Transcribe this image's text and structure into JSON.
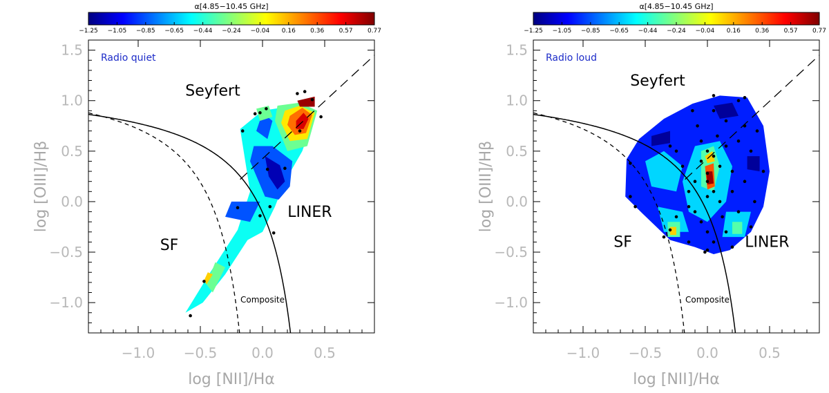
{
  "chart_data": [
    {
      "type": "contour",
      "panel_label": "Radio quiet",
      "xlabel": "log [NII]/Hα",
      "ylabel": "log [OIII]/Hβ",
      "xlim": [
        -1.4,
        0.9
      ],
      "ylim": [
        -1.3,
        1.6
      ],
      "xticks": [
        -1.0,
        -0.5,
        0.0,
        0.5
      ],
      "xtick_labels": [
        "−1.0",
        "−0.5",
        "0.0",
        "0.5"
      ],
      "yticks": [
        -1.0,
        -0.5,
        0.0,
        0.5,
        1.0,
        1.5
      ],
      "ytick_labels": [
        "−1.0",
        "−0.5",
        "0.0",
        "0.5",
        "1.0",
        "1.5"
      ],
      "colorbar": {
        "title": "α[4.85−10.45 GHz]",
        "min": -1.25,
        "max": 0.77,
        "tick_labels": [
          "−1.25",
          "−1.05",
          "−0.85",
          "−0.65",
          "−0.44",
          "−0.24",
          "−0.04",
          "0.16",
          "0.36",
          "0.57",
          "0.77"
        ]
      },
      "regions": [
        {
          "label": "Seyfert",
          "x": -0.4,
          "y": 1.05
        },
        {
          "label": "LINER",
          "x": 0.38,
          "y": -0.15
        },
        {
          "label": "SF",
          "x": -0.75,
          "y": -0.48
        },
        {
          "label": "Composite",
          "x": 0.0,
          "y": -1.0
        }
      ],
      "points": [
        {
          "x": -0.58,
          "y": -1.13
        },
        {
          "x": -0.47,
          "y": -0.79
        },
        {
          "x": -0.2,
          "y": -0.06
        },
        {
          "x": -0.16,
          "y": 0.7
        },
        {
          "x": -0.06,
          "y": 0.87
        },
        {
          "x": -0.02,
          "y": 0.88
        },
        {
          "x": 0.03,
          "y": 0.92
        },
        {
          "x": 0.28,
          "y": 1.07
        },
        {
          "x": 0.34,
          "y": 1.09
        },
        {
          "x": 0.4,
          "y": 1.01
        },
        {
          "x": 0.47,
          "y": 0.84
        },
        {
          "x": 0.3,
          "y": 0.7
        },
        {
          "x": 0.18,
          "y": 0.33
        },
        {
          "x": 0.04,
          "y": 0.32
        },
        {
          "x": 0.06,
          "y": -0.05
        },
        {
          "x": -0.02,
          "y": -0.14
        },
        {
          "x": 0.09,
          "y": -0.31
        }
      ],
      "contour_patches": [
        {
          "value": -0.5,
          "points": [
            [
              -0.62,
              -1.1
            ],
            [
              -0.42,
              -0.7
            ],
            [
              -0.2,
              -0.28
            ],
            [
              -0.1,
              0.1
            ],
            [
              -0.18,
              0.72
            ],
            [
              0.0,
              0.9
            ],
            [
              0.3,
              0.96
            ],
            [
              0.43,
              0.9
            ],
            [
              0.32,
              0.5
            ],
            [
              0.18,
              0.2
            ],
            [
              0.1,
              -0.05
            ],
            [
              0.0,
              -0.3
            ],
            [
              -0.12,
              -0.38
            ],
            [
              -0.3,
              -0.72
            ],
            [
              -0.48,
              -1.0
            ]
          ]
        },
        {
          "value": -0.85,
          "points": [
            [
              -0.3,
              -0.15
            ],
            [
              -0.1,
              -0.2
            ],
            [
              -0.02,
              0.0
            ],
            [
              -0.25,
              0.0
            ]
          ]
        },
        {
          "value": -0.85,
          "points": [
            [
              -0.07,
              0.55
            ],
            [
              0.08,
              0.55
            ],
            [
              0.24,
              0.4
            ],
            [
              0.22,
              0.15
            ],
            [
              0.13,
              0.02
            ],
            [
              0.02,
              0.05
            ],
            [
              -0.1,
              0.4
            ]
          ]
        },
        {
          "value": -1.15,
          "points": [
            [
              0.02,
              0.45
            ],
            [
              0.14,
              0.36
            ],
            [
              0.18,
              0.2
            ],
            [
              0.12,
              0.12
            ],
            [
              0.05,
              0.25
            ]
          ]
        },
        {
          "value": -0.85,
          "points": [
            [
              0.0,
              0.88
            ],
            [
              0.08,
              0.8
            ],
            [
              0.04,
              0.62
            ],
            [
              -0.05,
              0.7
            ]
          ]
        },
        {
          "value": -0.3,
          "points": [
            [
              -0.05,
              0.92
            ],
            [
              0.05,
              0.95
            ],
            [
              0.08,
              0.84
            ],
            [
              -0.02,
              0.8
            ]
          ]
        },
        {
          "value": -0.3,
          "points": [
            [
              -0.4,
              -0.9
            ],
            [
              -0.3,
              -0.65
            ],
            [
              -0.38,
              -0.6
            ],
            [
              -0.45,
              -0.82
            ]
          ]
        },
        {
          "value": -0.3,
          "points": [
            [
              0.12,
              0.95
            ],
            [
              0.3,
              0.98
            ],
            [
              0.44,
              0.9
            ],
            [
              0.36,
              0.55
            ],
            [
              0.2,
              0.5
            ],
            [
              0.1,
              0.8
            ]
          ]
        },
        {
          "value": 0.05,
          "points": [
            [
              0.18,
              0.9
            ],
            [
              0.3,
              0.95
            ],
            [
              0.42,
              0.88
            ],
            [
              0.36,
              0.62
            ],
            [
              0.22,
              0.6
            ],
            [
              0.15,
              0.78
            ]
          ]
        },
        {
          "value": 0.3,
          "points": [
            [
              0.22,
              0.85
            ],
            [
              0.32,
              0.93
            ],
            [
              0.4,
              0.86
            ],
            [
              0.35,
              0.68
            ],
            [
              0.26,
              0.66
            ],
            [
              0.2,
              0.76
            ]
          ]
        },
        {
          "value": 0.6,
          "points": [
            [
              0.27,
              0.8
            ],
            [
              0.33,
              0.88
            ],
            [
              0.37,
              0.82
            ],
            [
              0.33,
              0.72
            ],
            [
              0.27,
              0.72
            ]
          ]
        },
        {
          "value": 0.72,
          "points": [
            [
              0.28,
              1.0
            ],
            [
              0.42,
              1.04
            ],
            [
              0.42,
              0.94
            ],
            [
              0.3,
              0.94
            ]
          ]
        },
        {
          "value": 0.1,
          "points": [
            [
              -0.45,
              -0.82
            ],
            [
              -0.4,
              -0.72
            ],
            [
              -0.44,
              -0.7
            ],
            [
              -0.47,
              -0.78
            ]
          ]
        }
      ]
    },
    {
      "type": "contour",
      "panel_label": "Radio loud",
      "xlabel": "log [NII]/Hα",
      "ylabel": "log [OIII]/Hβ",
      "xlim": [
        -1.4,
        0.9
      ],
      "ylim": [
        -1.3,
        1.6
      ],
      "xticks": [
        -1.0,
        -0.5,
        0.0,
        0.5
      ],
      "xtick_labels": [
        "−1.0",
        "−0.5",
        "0.0",
        "0.5"
      ],
      "yticks": [
        -1.0,
        -0.5,
        0.0,
        0.5,
        1.0,
        1.5
      ],
      "ytick_labels": [
        "−1.0",
        "−0.5",
        "0.0",
        "0.5",
        "1.0",
        "1.5"
      ],
      "colorbar": {
        "title": "α[4.85−10.45 GHz]",
        "min": -1.25,
        "max": 0.77,
        "tick_labels": [
          "−1.25",
          "−1.05",
          "−0.85",
          "−0.65",
          "−0.44",
          "−0.24",
          "−0.04",
          "0.16",
          "0.36",
          "0.57",
          "0.77"
        ]
      },
      "regions": [
        {
          "label": "Seyfert",
          "x": -0.4,
          "y": 1.15
        },
        {
          "label": "LINER",
          "x": 0.48,
          "y": -0.45
        },
        {
          "label": "SF",
          "x": -0.68,
          "y": -0.45
        },
        {
          "label": "Composite",
          "x": 0.0,
          "y": -1.0
        }
      ],
      "points": [
        {
          "x": -0.62,
          "y": 0.38
        },
        {
          "x": -0.62,
          "y": 0.05
        },
        {
          "x": -0.58,
          "y": -0.05
        },
        {
          "x": -0.3,
          "y": -0.28
        },
        {
          "x": -0.3,
          "y": 0.55
        },
        {
          "x": -0.25,
          "y": 0.5
        },
        {
          "x": -0.2,
          "y": 0.35
        },
        {
          "x": -0.15,
          "y": 0.1
        },
        {
          "x": -0.15,
          "y": -0.05
        },
        {
          "x": -0.1,
          "y": 0.2
        },
        {
          "x": -0.1,
          "y": -0.1
        },
        {
          "x": -0.08,
          "y": 0.75
        },
        {
          "x": -0.05,
          "y": 0.6
        },
        {
          "x": -0.05,
          "y": 0.4
        },
        {
          "x": -0.05,
          "y": -0.2
        },
        {
          "x": 0.0,
          "y": 0.5
        },
        {
          "x": 0.0,
          "y": 0.28
        },
        {
          "x": 0.0,
          "y": 0.2
        },
        {
          "x": 0.0,
          "y": 0.05
        },
        {
          "x": 0.0,
          "y": -0.3
        },
        {
          "x": 0.05,
          "y": 0.9
        },
        {
          "x": 0.05,
          "y": 0.45
        },
        {
          "x": 0.05,
          "y": 0.1
        },
        {
          "x": 0.05,
          "y": -0.4
        },
        {
          "x": 0.08,
          "y": 0.65
        },
        {
          "x": 0.1,
          "y": 0.35
        },
        {
          "x": 0.1,
          "y": 0.0
        },
        {
          "x": 0.12,
          "y": -0.15
        },
        {
          "x": 0.15,
          "y": 0.8
        },
        {
          "x": 0.15,
          "y": 0.55
        },
        {
          "x": 0.2,
          "y": 0.3
        },
        {
          "x": 0.2,
          "y": 0.1
        },
        {
          "x": 0.25,
          "y": 1.0
        },
        {
          "x": 0.25,
          "y": 0.6
        },
        {
          "x": 0.25,
          "y": -0.1
        },
        {
          "x": 0.3,
          "y": 0.2
        },
        {
          "x": 0.3,
          "y": 0.75
        },
        {
          "x": 0.35,
          "y": 0.5
        },
        {
          "x": 0.38,
          "y": 0.0
        },
        {
          "x": 0.45,
          "y": 0.3
        },
        {
          "x": -0.12,
          "y": 0.9
        },
        {
          "x": 0.05,
          "y": 1.05
        },
        {
          "x": 0.3,
          "y": 1.03
        },
        {
          "x": 0.4,
          "y": 0.7
        },
        {
          "x": -0.35,
          "y": -0.35
        },
        {
          "x": 0.0,
          "y": -0.48
        },
        {
          "x": 0.15,
          "y": -0.3
        },
        {
          "x": -0.15,
          "y": -0.4
        },
        {
          "x": 0.2,
          "y": -0.45
        },
        {
          "x": -0.02,
          "y": -0.5
        },
        {
          "x": -0.25,
          "y": -0.15
        },
        {
          "x": 0.35,
          "y": -0.25
        }
      ],
      "contour_patches": [
        {
          "value": -0.95,
          "points": [
            [
              -0.65,
              0.42
            ],
            [
              -0.55,
              0.62
            ],
            [
              -0.35,
              0.82
            ],
            [
              -0.12,
              0.97
            ],
            [
              0.1,
              1.05
            ],
            [
              0.32,
              1.03
            ],
            [
              0.45,
              0.75
            ],
            [
              0.5,
              0.3
            ],
            [
              0.45,
              -0.05
            ],
            [
              0.35,
              -0.3
            ],
            [
              0.18,
              -0.48
            ],
            [
              0.05,
              -0.52
            ],
            [
              -0.1,
              -0.45
            ],
            [
              -0.3,
              -0.38
            ],
            [
              -0.52,
              -0.12
            ],
            [
              -0.66,
              0.05
            ]
          ]
        },
        {
          "value": -0.6,
          "points": [
            [
              -0.5,
              0.4
            ],
            [
              -0.35,
              0.5
            ],
            [
              -0.2,
              0.35
            ],
            [
              -0.25,
              0.1
            ],
            [
              -0.45,
              0.15
            ]
          ]
        },
        {
          "value": -0.6,
          "points": [
            [
              -0.1,
              0.55
            ],
            [
              0.1,
              0.6
            ],
            [
              0.2,
              0.35
            ],
            [
              0.15,
              0.0
            ],
            [
              0.0,
              -0.2
            ],
            [
              -0.15,
              -0.1
            ],
            [
              -0.2,
              0.2
            ]
          ]
        },
        {
          "value": -0.6,
          "points": [
            [
              -0.4,
              -0.05
            ],
            [
              -0.2,
              -0.1
            ],
            [
              -0.15,
              -0.3
            ],
            [
              -0.35,
              -0.3
            ]
          ]
        },
        {
          "value": -0.6,
          "points": [
            [
              0.15,
              -0.1
            ],
            [
              0.35,
              -0.1
            ],
            [
              0.3,
              -0.35
            ],
            [
              0.12,
              -0.35
            ]
          ]
        },
        {
          "value": -0.35,
          "points": [
            [
              -0.05,
              0.5
            ],
            [
              0.05,
              0.55
            ],
            [
              0.1,
              0.35
            ],
            [
              0.05,
              0.1
            ],
            [
              -0.05,
              0.15
            ]
          ]
        },
        {
          "value": -0.35,
          "points": [
            [
              -0.32,
              -0.2
            ],
            [
              -0.22,
              -0.2
            ],
            [
              -0.22,
              -0.35
            ],
            [
              -0.32,
              -0.35
            ]
          ]
        },
        {
          "value": -0.35,
          "points": [
            [
              0.2,
              -0.2
            ],
            [
              0.28,
              -0.2
            ],
            [
              0.28,
              -0.32
            ],
            [
              0.2,
              -0.32
            ]
          ]
        },
        {
          "value": 0.1,
          "points": [
            [
              -0.02,
              0.45
            ],
            [
              0.04,
              0.5
            ],
            [
              0.06,
              0.4
            ],
            [
              0.0,
              0.38
            ]
          ]
        },
        {
          "value": 0.1,
          "points": [
            [
              -0.3,
              -0.25
            ],
            [
              -0.25,
              -0.25
            ],
            [
              -0.25,
              -0.33
            ],
            [
              -0.3,
              -0.33
            ]
          ]
        },
        {
          "value": 0.35,
          "points": [
            [
              -0.02,
              0.35
            ],
            [
              0.05,
              0.38
            ],
            [
              0.06,
              0.15
            ],
            [
              0.0,
              0.12
            ]
          ]
        },
        {
          "value": 0.72,
          "points": [
            [
              -0.01,
              0.3
            ],
            [
              0.04,
              0.3
            ],
            [
              0.05,
              0.18
            ],
            [
              0.0,
              0.17
            ]
          ]
        },
        {
          "value": -1.2,
          "points": [
            [
              0.05,
              0.95
            ],
            [
              0.2,
              0.98
            ],
            [
              0.25,
              0.85
            ],
            [
              0.1,
              0.82
            ]
          ]
        },
        {
          "value": -1.2,
          "points": [
            [
              0.32,
              0.45
            ],
            [
              0.42,
              0.45
            ],
            [
              0.42,
              0.3
            ],
            [
              0.32,
              0.32
            ]
          ]
        },
        {
          "value": -1.2,
          "points": [
            [
              -0.45,
              0.65
            ],
            [
              -0.3,
              0.7
            ],
            [
              -0.3,
              0.58
            ],
            [
              -0.45,
              0.55
            ]
          ]
        }
      ]
    }
  ]
}
